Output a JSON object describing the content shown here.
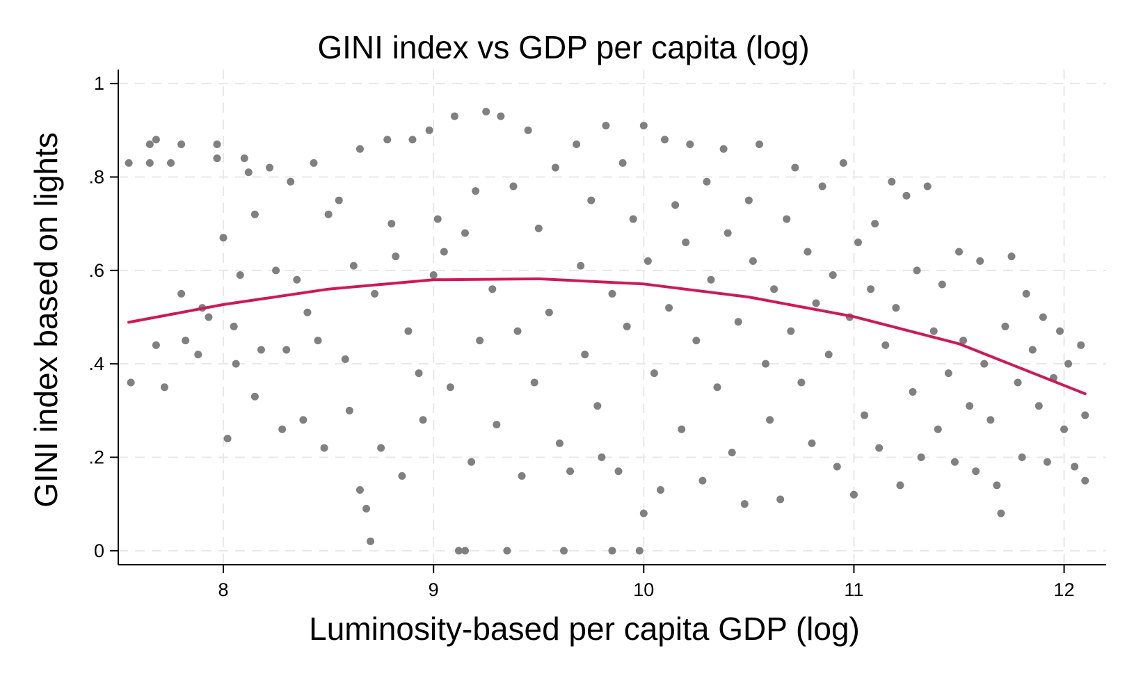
{
  "chart_data": {
    "type": "scatter",
    "title": "GINI index vs GDP per capita (log)",
    "xlabel": "Luminosity-based per capita GDP (log)",
    "ylabel": "GINI index based on lights",
    "xlim": [
      7.5,
      12.2
    ],
    "ylim": [
      -0.03,
      1.03
    ],
    "x_ticks": [
      8,
      9,
      10,
      11,
      12
    ],
    "x_tick_labels": [
      "8",
      "9",
      "10",
      "11",
      "12"
    ],
    "y_ticks": [
      0,
      0.2,
      0.4,
      0.6,
      0.8,
      1
    ],
    "y_tick_labels": [
      "0",
      ".2",
      ".4",
      ".6",
      ".8",
      "1"
    ],
    "grid": true,
    "colors": {
      "points": "#808080",
      "fit_line": "#cc1a55"
    },
    "series": [
      {
        "type": "scatter",
        "points": [
          [
            7.55,
            0.83
          ],
          [
            7.56,
            0.36
          ],
          [
            7.65,
            0.87
          ],
          [
            7.65,
            0.83
          ],
          [
            7.68,
            0.44
          ],
          [
            7.68,
            0.88
          ],
          [
            7.72,
            0.35
          ],
          [
            7.75,
            0.83
          ],
          [
            7.8,
            0.87
          ],
          [
            7.8,
            0.55
          ],
          [
            7.82,
            0.45
          ],
          [
            7.88,
            0.42
          ],
          [
            7.9,
            0.52
          ],
          [
            7.93,
            0.5
          ],
          [
            7.97,
            0.87
          ],
          [
            7.97,
            0.84
          ],
          [
            8.0,
            0.67
          ],
          [
            8.02,
            0.24
          ],
          [
            8.05,
            0.48
          ],
          [
            8.06,
            0.4
          ],
          [
            8.08,
            0.59
          ],
          [
            8.1,
            0.84
          ],
          [
            8.12,
            0.81
          ],
          [
            8.15,
            0.72
          ],
          [
            8.15,
            0.33
          ],
          [
            8.18,
            0.43
          ],
          [
            8.22,
            0.82
          ],
          [
            8.25,
            0.6
          ],
          [
            8.28,
            0.26
          ],
          [
            8.3,
            0.43
          ],
          [
            8.32,
            0.79
          ],
          [
            8.35,
            0.58
          ],
          [
            8.38,
            0.28
          ],
          [
            8.4,
            0.51
          ],
          [
            8.43,
            0.83
          ],
          [
            8.45,
            0.45
          ],
          [
            8.48,
            0.22
          ],
          [
            8.5,
            0.72
          ],
          [
            8.55,
            0.75
          ],
          [
            8.58,
            0.41
          ],
          [
            8.6,
            0.3
          ],
          [
            8.62,
            0.61
          ],
          [
            8.65,
            0.86
          ],
          [
            8.65,
            0.13
          ],
          [
            8.68,
            0.09
          ],
          [
            8.7,
            0.02
          ],
          [
            8.72,
            0.55
          ],
          [
            8.75,
            0.22
          ],
          [
            8.78,
            0.88
          ],
          [
            8.8,
            0.7
          ],
          [
            8.82,
            0.63
          ],
          [
            8.85,
            0.16
          ],
          [
            8.88,
            0.47
          ],
          [
            8.9,
            0.88
          ],
          [
            8.93,
            0.38
          ],
          [
            8.95,
            0.28
          ],
          [
            8.98,
            0.9
          ],
          [
            9.0,
            0.59
          ],
          [
            9.02,
            0.71
          ],
          [
            9.05,
            0.64
          ],
          [
            9.08,
            0.35
          ],
          [
            9.1,
            0.93
          ],
          [
            9.12,
            0.0
          ],
          [
            9.15,
            0.0
          ],
          [
            9.15,
            0.68
          ],
          [
            9.18,
            0.19
          ],
          [
            9.2,
            0.77
          ],
          [
            9.22,
            0.45
          ],
          [
            9.25,
            0.94
          ],
          [
            9.28,
            0.56
          ],
          [
            9.3,
            0.27
          ],
          [
            9.32,
            0.93
          ],
          [
            9.35,
            0.0
          ],
          [
            9.38,
            0.78
          ],
          [
            9.4,
            0.47
          ],
          [
            9.42,
            0.16
          ],
          [
            9.45,
            0.9
          ],
          [
            9.48,
            0.36
          ],
          [
            9.5,
            0.69
          ],
          [
            9.55,
            0.51
          ],
          [
            9.58,
            0.82
          ],
          [
            9.6,
            0.23
          ],
          [
            9.62,
            0.0
          ],
          [
            9.65,
            0.17
          ],
          [
            9.68,
            0.87
          ],
          [
            9.7,
            0.61
          ],
          [
            9.72,
            0.42
          ],
          [
            9.75,
            0.75
          ],
          [
            9.78,
            0.31
          ],
          [
            9.8,
            0.2
          ],
          [
            9.82,
            0.91
          ],
          [
            9.85,
            0.0
          ],
          [
            9.85,
            0.55
          ],
          [
            9.88,
            0.17
          ],
          [
            9.9,
            0.83
          ],
          [
            9.92,
            0.48
          ],
          [
            9.95,
            0.71
          ],
          [
            9.98,
            0.0
          ],
          [
            10.0,
            0.91
          ],
          [
            10.0,
            0.08
          ],
          [
            10.02,
            0.62
          ],
          [
            10.05,
            0.38
          ],
          [
            10.08,
            0.13
          ],
          [
            10.1,
            0.88
          ],
          [
            10.12,
            0.52
          ],
          [
            10.15,
            0.74
          ],
          [
            10.18,
            0.26
          ],
          [
            10.2,
            0.66
          ],
          [
            10.22,
            0.87
          ],
          [
            10.25,
            0.45
          ],
          [
            10.28,
            0.15
          ],
          [
            10.3,
            0.79
          ],
          [
            10.32,
            0.58
          ],
          [
            10.35,
            0.35
          ],
          [
            10.38,
            0.86
          ],
          [
            10.4,
            0.68
          ],
          [
            10.42,
            0.21
          ],
          [
            10.45,
            0.49
          ],
          [
            10.48,
            0.1
          ],
          [
            10.5,
            0.75
          ],
          [
            10.52,
            0.62
          ],
          [
            10.55,
            0.87
          ],
          [
            10.58,
            0.4
          ],
          [
            10.6,
            0.28
          ],
          [
            10.62,
            0.56
          ],
          [
            10.65,
            0.11
          ],
          [
            10.68,
            0.71
          ],
          [
            10.7,
            0.47
          ],
          [
            10.72,
            0.82
          ],
          [
            10.75,
            0.36
          ],
          [
            10.78,
            0.64
          ],
          [
            10.8,
            0.23
          ],
          [
            10.82,
            0.53
          ],
          [
            10.85,
            0.78
          ],
          [
            10.88,
            0.42
          ],
          [
            10.9,
            0.59
          ],
          [
            10.92,
            0.18
          ],
          [
            10.95,
            0.83
          ],
          [
            10.98,
            0.5
          ],
          [
            11.0,
            0.12
          ],
          [
            11.02,
            0.66
          ],
          [
            11.05,
            0.29
          ],
          [
            11.08,
            0.56
          ],
          [
            11.1,
            0.7
          ],
          [
            11.12,
            0.22
          ],
          [
            11.15,
            0.44
          ],
          [
            11.18,
            0.79
          ],
          [
            11.2,
            0.52
          ],
          [
            11.22,
            0.14
          ],
          [
            11.25,
            0.76
          ],
          [
            11.28,
            0.34
          ],
          [
            11.3,
            0.6
          ],
          [
            11.32,
            0.2
          ],
          [
            11.35,
            0.78
          ],
          [
            11.38,
            0.47
          ],
          [
            11.4,
            0.26
          ],
          [
            11.42,
            0.57
          ],
          [
            11.45,
            0.38
          ],
          [
            11.48,
            0.19
          ],
          [
            11.5,
            0.64
          ],
          [
            11.52,
            0.45
          ],
          [
            11.55,
            0.31
          ],
          [
            11.58,
            0.17
          ],
          [
            11.6,
            0.62
          ],
          [
            11.62,
            0.4
          ],
          [
            11.65,
            0.28
          ],
          [
            11.68,
            0.14
          ],
          [
            11.7,
            0.08
          ],
          [
            11.72,
            0.48
          ],
          [
            11.75,
            0.63
          ],
          [
            11.78,
            0.36
          ],
          [
            11.8,
            0.2
          ],
          [
            11.82,
            0.55
          ],
          [
            11.85,
            0.43
          ],
          [
            11.88,
            0.31
          ],
          [
            11.9,
            0.5
          ],
          [
            11.92,
            0.19
          ],
          [
            11.95,
            0.37
          ],
          [
            11.98,
            0.47
          ],
          [
            12.0,
            0.26
          ],
          [
            12.02,
            0.4
          ],
          [
            12.05,
            0.18
          ],
          [
            12.08,
            0.44
          ],
          [
            12.1,
            0.29
          ],
          [
            12.1,
            0.15
          ]
        ]
      }
    ],
    "fit_line": {
      "type": "quadratic",
      "x_range": [
        7.55,
        12.1
      ],
      "points": [
        [
          7.55,
          0.489
        ],
        [
          8.0,
          0.527
        ],
        [
          8.5,
          0.56
        ],
        [
          9.0,
          0.58
        ],
        [
          9.5,
          0.582
        ],
        [
          10.0,
          0.571
        ],
        [
          10.5,
          0.543
        ],
        [
          11.0,
          0.501
        ],
        [
          11.5,
          0.443
        ],
        [
          12.1,
          0.336
        ]
      ]
    }
  }
}
